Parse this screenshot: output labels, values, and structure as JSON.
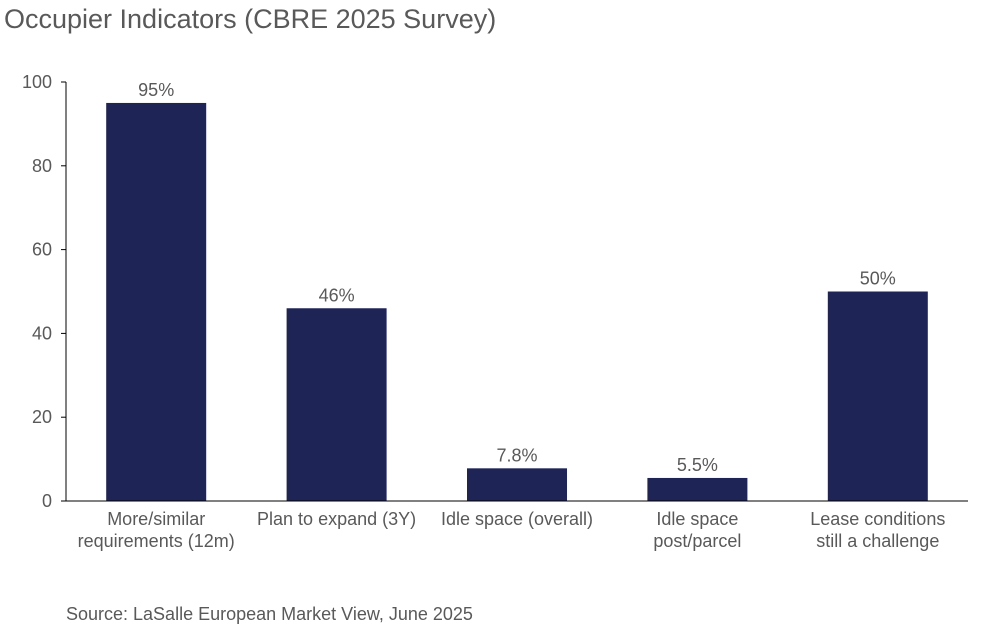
{
  "chart_data": {
    "type": "bar",
    "title": "Occupier Indicators (CBRE 2025 Survey)",
    "categories": [
      [
        "More/similar",
        "requirements (12m)"
      ],
      [
        "Plan to expand (3Y)"
      ],
      [
        "Idle space (overall)"
      ],
      [
        "Idle space",
        "post/parcel"
      ],
      [
        "Lease conditions",
        "still a challenge"
      ]
    ],
    "values": [
      95,
      46,
      7.8,
      5.5,
      50
    ],
    "data_labels": [
      "95%",
      "46%",
      "7.8%",
      "5.5%",
      "50%"
    ],
    "xlabel": "",
    "ylabel": "",
    "ylim": [
      0,
      100
    ],
    "yticks": [
      0,
      20,
      40,
      60,
      80,
      100
    ],
    "grid": false,
    "legend": "none",
    "colors": {
      "bar": "#1f2456",
      "text": "#595959",
      "axis": "#000000"
    }
  },
  "source": "Source: LaSalle European Market View, June 2025"
}
